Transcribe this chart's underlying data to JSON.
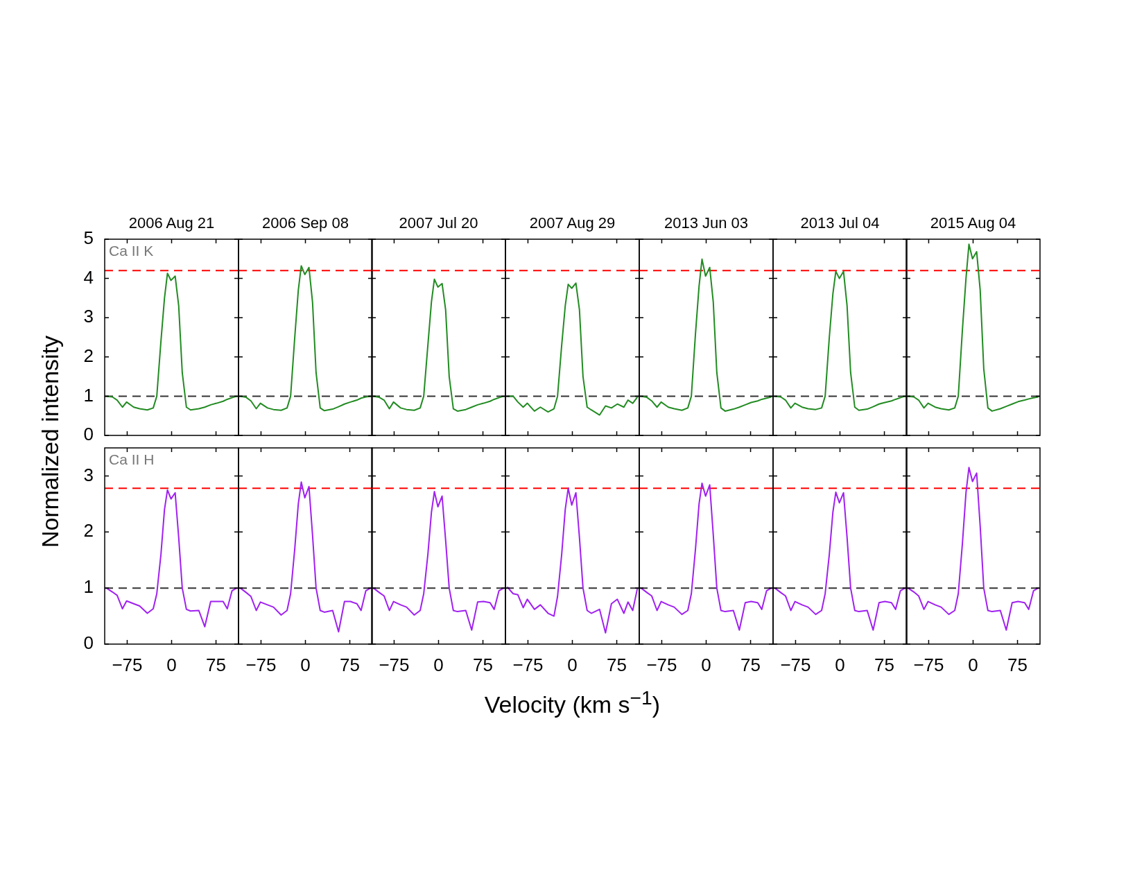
{
  "chart_data": [
    {
      "type": "line",
      "title": "2006 Aug 21",
      "ylabel": "Normalized intensity",
      "annotations": [
        "Ca II K"
      ],
      "tick_labels": "y",
      "xlim": [
        -113,
        113
      ],
      "xticks": [
        -75,
        0,
        75
      ],
      "ylim": [
        0,
        5
      ],
      "yticks": [
        0,
        1,
        2,
        3,
        4,
        5
      ],
      "ref_lines": [
        {
          "axis": "y",
          "value": 4.2,
          "color": "#ff0000",
          "line_style": "dashed"
        },
        {
          "axis": "y",
          "value": 1,
          "color": "#333333",
          "line_style": "dashed"
        }
      ],
      "x": [
        -110,
        -100,
        -92,
        -83,
        -76,
        -64,
        -54,
        -41,
        -31,
        -25,
        -18,
        -12,
        -7,
        -1,
        6,
        12,
        18,
        25,
        32,
        46,
        56,
        66,
        76,
        87,
        94,
        102,
        110
      ],
      "series": [
        {
          "color": "#228b22",
          "values": [
            1.0,
            0.98,
            0.9,
            0.72,
            0.85,
            0.72,
            0.68,
            0.65,
            0.7,
            1.0,
            2.4,
            3.5,
            4.13,
            3.95,
            4.06,
            3.3,
            1.6,
            0.72,
            0.65,
            0.68,
            0.72,
            0.78,
            0.82,
            0.87,
            0.92,
            0.96,
            1.0
          ]
        }
      ]
    },
    {
      "type": "line",
      "title": "2006 Sep 08",
      "tick_labels": false,
      "xlim": [
        -113,
        113
      ],
      "xticks": [
        -75,
        0,
        75
      ],
      "ylim": [
        0,
        5
      ],
      "yticks": [
        0,
        1,
        2,
        3,
        4,
        5
      ],
      "ref_lines": [
        {
          "axis": "y",
          "value": 4.2,
          "color": "#ff0000",
          "line_style": "dashed"
        },
        {
          "axis": "y",
          "value": 1,
          "color": "#333333",
          "line_style": "dashed"
        }
      ],
      "x": [
        -110,
        -100,
        -92,
        -83,
        -76,
        -64,
        -54,
        -41,
        -31,
        -25,
        -18,
        -12,
        -7,
        -1,
        6,
        12,
        18,
        25,
        32,
        46,
        56,
        66,
        76,
        87,
        94,
        102,
        110
      ],
      "series": [
        {
          "color": "#228b22",
          "values": [
            1.0,
            0.97,
            0.88,
            0.68,
            0.82,
            0.7,
            0.66,
            0.64,
            0.7,
            1.0,
            2.5,
            3.7,
            4.32,
            4.1,
            4.28,
            3.4,
            1.6,
            0.7,
            0.63,
            0.67,
            0.73,
            0.8,
            0.85,
            0.9,
            0.95,
            0.98,
            1.0
          ]
        }
      ]
    },
    {
      "type": "line",
      "title": "2007 Jul 20",
      "tick_labels": false,
      "xlim": [
        -113,
        113
      ],
      "xticks": [
        -75,
        0,
        75
      ],
      "ylim": [
        0,
        5
      ],
      "yticks": [
        0,
        1,
        2,
        3,
        4,
        5
      ],
      "ref_lines": [
        {
          "axis": "y",
          "value": 4.2,
          "color": "#ff0000",
          "line_style": "dashed"
        },
        {
          "axis": "y",
          "value": 1,
          "color": "#333333",
          "line_style": "dashed"
        }
      ],
      "x": [
        -110,
        -100,
        -92,
        -83,
        -76,
        -64,
        -54,
        -41,
        -31,
        -25,
        -18,
        -12,
        -7,
        -1,
        6,
        12,
        18,
        25,
        32,
        46,
        56,
        66,
        76,
        87,
        94,
        102,
        110
      ],
      "series": [
        {
          "color": "#228b22",
          "values": [
            1.0,
            0.97,
            0.9,
            0.68,
            0.85,
            0.7,
            0.66,
            0.64,
            0.7,
            1.0,
            2.3,
            3.4,
            3.98,
            3.78,
            3.87,
            3.2,
            1.5,
            0.68,
            0.62,
            0.66,
            0.72,
            0.78,
            0.82,
            0.87,
            0.92,
            0.96,
            1.0
          ]
        }
      ]
    },
    {
      "type": "line",
      "title": "2007 Aug 29",
      "tick_labels": false,
      "xlim": [
        -113,
        113
      ],
      "xticks": [
        -75,
        0,
        75
      ],
      "ylim": [
        0,
        5
      ],
      "yticks": [
        0,
        1,
        2,
        3,
        4,
        5
      ],
      "ref_lines": [
        {
          "axis": "y",
          "value": 4.2,
          "color": "#ff0000",
          "line_style": "dashed"
        },
        {
          "axis": "y",
          "value": 1,
          "color": "#333333",
          "line_style": "dashed"
        }
      ],
      "x": [
        -110,
        -100,
        -92,
        -83,
        -76,
        -64,
        -54,
        -41,
        -31,
        -25,
        -18,
        -12,
        -7,
        -1,
        6,
        12,
        18,
        25,
        32,
        46,
        56,
        66,
        76,
        87,
        94,
        102,
        110
      ],
      "series": [
        {
          "color": "#228b22",
          "values": [
            1.0,
            1.0,
            0.85,
            0.72,
            0.82,
            0.62,
            0.72,
            0.6,
            0.68,
            1.0,
            2.3,
            3.3,
            3.85,
            3.75,
            3.88,
            3.2,
            1.5,
            0.72,
            0.65,
            0.52,
            0.75,
            0.7,
            0.8,
            0.72,
            0.9,
            0.82,
            0.98
          ]
        }
      ]
    },
    {
      "type": "line",
      "title": "2013 Jun 03",
      "tick_labels": false,
      "xlim": [
        -113,
        113
      ],
      "xticks": [
        -75,
        0,
        75
      ],
      "ylim": [
        0,
        5
      ],
      "yticks": [
        0,
        1,
        2,
        3,
        4,
        5
      ],
      "ref_lines": [
        {
          "axis": "y",
          "value": 4.2,
          "color": "#ff0000",
          "line_style": "dashed"
        },
        {
          "axis": "y",
          "value": 1,
          "color": "#333333",
          "line_style": "dashed"
        }
      ],
      "x": [
        -110,
        -100,
        -92,
        -83,
        -76,
        -64,
        -54,
        -41,
        -31,
        -25,
        -18,
        -12,
        -7,
        -1,
        6,
        12,
        18,
        25,
        32,
        46,
        56,
        66,
        76,
        87,
        94,
        102,
        110
      ],
      "series": [
        {
          "color": "#228b22",
          "values": [
            1.0,
            0.97,
            0.88,
            0.72,
            0.85,
            0.72,
            0.68,
            0.64,
            0.7,
            1.0,
            2.6,
            3.8,
            4.49,
            4.06,
            4.28,
            3.4,
            1.6,
            0.7,
            0.62,
            0.67,
            0.72,
            0.78,
            0.84,
            0.88,
            0.92,
            0.95,
            0.98
          ]
        }
      ]
    },
    {
      "type": "line",
      "title": "2013 Jul 04",
      "tick_labels": false,
      "xlim": [
        -113,
        113
      ],
      "xticks": [
        -75,
        0,
        75
      ],
      "ylim": [
        0,
        5
      ],
      "yticks": [
        0,
        1,
        2,
        3,
        4,
        5
      ],
      "ref_lines": [
        {
          "axis": "y",
          "value": 4.2,
          "color": "#ff0000",
          "line_style": "dashed"
        },
        {
          "axis": "y",
          "value": 1,
          "color": "#333333",
          "line_style": "dashed"
        }
      ],
      "x": [
        -110,
        -100,
        -92,
        -83,
        -76,
        -64,
        -54,
        -41,
        -31,
        -25,
        -18,
        -12,
        -7,
        -1,
        6,
        12,
        18,
        25,
        32,
        46,
        56,
        66,
        76,
        87,
        94,
        102,
        110
      ],
      "series": [
        {
          "color": "#228b22",
          "values": [
            1.0,
            0.98,
            0.9,
            0.7,
            0.82,
            0.72,
            0.68,
            0.66,
            0.7,
            1.0,
            2.5,
            3.6,
            4.18,
            4.0,
            4.18,
            3.3,
            1.6,
            0.72,
            0.64,
            0.67,
            0.73,
            0.8,
            0.84,
            0.88,
            0.92,
            0.96,
            1.0
          ]
        }
      ]
    },
    {
      "type": "line",
      "title": "2015 Aug 04",
      "tick_labels": false,
      "xlim": [
        -113,
        113
      ],
      "xticks": [
        -75,
        0,
        75
      ],
      "ylim": [
        0,
        5
      ],
      "yticks": [
        0,
        1,
        2,
        3,
        4,
        5
      ],
      "ref_lines": [
        {
          "axis": "y",
          "value": 4.2,
          "color": "#ff0000",
          "line_style": "dashed"
        },
        {
          "axis": "y",
          "value": 1,
          "color": "#333333",
          "line_style": "dashed"
        }
      ],
      "x": [
        -110,
        -100,
        -92,
        -83,
        -76,
        -64,
        -54,
        -41,
        -31,
        -25,
        -18,
        -12,
        -7,
        -1,
        6,
        12,
        18,
        25,
        32,
        46,
        56,
        66,
        76,
        87,
        94,
        102,
        110
      ],
      "series": [
        {
          "color": "#228b22",
          "values": [
            1.0,
            0.98,
            0.9,
            0.7,
            0.82,
            0.72,
            0.68,
            0.65,
            0.7,
            1.0,
            2.7,
            4.0,
            4.87,
            4.5,
            4.68,
            3.7,
            1.7,
            0.7,
            0.62,
            0.68,
            0.74,
            0.8,
            0.86,
            0.9,
            0.93,
            0.96,
            0.98
          ]
        }
      ]
    },
    {
      "type": "line",
      "annotations": [
        "Ca II H"
      ],
      "xlim": [
        -113,
        113
      ],
      "xticks": [
        -75,
        0,
        75
      ],
      "ylim": [
        0,
        3.5
      ],
      "yticks": [
        0,
        1,
        2,
        3
      ],
      "ref_lines": [
        {
          "axis": "y",
          "value": 2.78,
          "color": "#ff0000",
          "line_style": "dashed"
        },
        {
          "axis": "y",
          "value": 1,
          "color": "#333333",
          "line_style": "dashed"
        }
      ],
      "x": [
        -110,
        -100,
        -92,
        -83,
        -76,
        -64,
        -54,
        -41,
        -31,
        -25,
        -18,
        -12,
        -7,
        -1,
        6,
        12,
        18,
        25,
        32,
        46,
        56,
        66,
        76,
        87,
        94,
        102,
        110
      ],
      "series": [
        {
          "color": "#a020f0",
          "values": [
            1.0,
            0.93,
            0.87,
            0.63,
            0.77,
            0.72,
            0.68,
            0.55,
            0.63,
            0.9,
            1.6,
            2.4,
            2.75,
            2.59,
            2.7,
            1.9,
            1.0,
            0.62,
            0.59,
            0.6,
            0.31,
            0.76,
            0.76,
            0.76,
            0.63,
            0.95,
            1.0
          ]
        }
      ]
    },
    {
      "type": "line",
      "tick_labels": "x",
      "xlim": [
        -113,
        113
      ],
      "xticks": [
        -75,
        0,
        75
      ],
      "ylim": [
        0,
        3.5
      ],
      "yticks": [
        0,
        1,
        2,
        3
      ],
      "ref_lines": [
        {
          "axis": "y",
          "value": 2.78,
          "color": "#ff0000",
          "line_style": "dashed"
        },
        {
          "axis": "y",
          "value": 1,
          "color": "#333333",
          "line_style": "dashed"
        }
      ],
      "x": [
        -110,
        -100,
        -92,
        -83,
        -76,
        -64,
        -54,
        -41,
        -31,
        -25,
        -18,
        -12,
        -7,
        -1,
        6,
        12,
        18,
        25,
        32,
        46,
        56,
        66,
        76,
        87,
        94,
        102,
        110
      ],
      "series": [
        {
          "color": "#a020f0",
          "values": [
            1.0,
            0.92,
            0.85,
            0.6,
            0.75,
            0.7,
            0.66,
            0.52,
            0.6,
            0.9,
            1.7,
            2.5,
            2.89,
            2.61,
            2.81,
            1.95,
            1.0,
            0.6,
            0.57,
            0.6,
            0.22,
            0.76,
            0.76,
            0.72,
            0.6,
            0.95,
            1.0
          ]
        }
      ]
    },
    {
      "type": "line",
      "tick_labels": "x",
      "xlim": [
        -113,
        113
      ],
      "xticks": [
        -75,
        0,
        75
      ],
      "ylim": [
        0,
        3.5
      ],
      "yticks": [
        0,
        1,
        2,
        3
      ],
      "ref_lines": [
        {
          "axis": "y",
          "value": 2.78,
          "color": "#ff0000",
          "line_style": "dashed"
        },
        {
          "axis": "y",
          "value": 1,
          "color": "#333333",
          "line_style": "dashed"
        }
      ],
      "x": [
        -110,
        -100,
        -92,
        -83,
        -76,
        -64,
        -54,
        -41,
        -31,
        -25,
        -18,
        -12,
        -7,
        -1,
        6,
        12,
        18,
        25,
        32,
        46,
        56,
        66,
        76,
        87,
        94,
        102,
        110
      ],
      "series": [
        {
          "color": "#a020f0",
          "values": [
            1.0,
            0.92,
            0.86,
            0.6,
            0.76,
            0.7,
            0.66,
            0.52,
            0.6,
            0.9,
            1.6,
            2.35,
            2.72,
            2.45,
            2.64,
            1.85,
            1.0,
            0.6,
            0.58,
            0.6,
            0.25,
            0.75,
            0.76,
            0.74,
            0.62,
            0.95,
            1.0
          ]
        }
      ]
    },
    {
      "type": "line",
      "tick_labels": "x",
      "xlabel": "Velocity (km s$^{−1}$)",
      "xlim": [
        -113,
        113
      ],
      "xticks": [
        -75,
        0,
        75
      ],
      "ylim": [
        0,
        3.5
      ],
      "yticks": [
        0,
        1,
        2,
        3
      ],
      "ref_lines": [
        {
          "axis": "y",
          "value": 2.78,
          "color": "#ff0000",
          "line_style": "dashed"
        },
        {
          "axis": "y",
          "value": 1,
          "color": "#333333",
          "line_style": "dashed"
        }
      ],
      "x": [
        -110,
        -100,
        -92,
        -83,
        -76,
        -64,
        -54,
        -41,
        -31,
        -25,
        -18,
        -12,
        -7,
        -1,
        6,
        12,
        18,
        25,
        32,
        46,
        56,
        66,
        76,
        87,
        94,
        102,
        110
      ],
      "series": [
        {
          "color": "#a020f0",
          "values": [
            1.02,
            0.9,
            0.88,
            0.65,
            0.8,
            0.62,
            0.7,
            0.55,
            0.5,
            0.85,
            1.6,
            2.4,
            2.78,
            2.48,
            2.7,
            1.9,
            1.0,
            0.6,
            0.55,
            0.62,
            0.2,
            0.72,
            0.8,
            0.55,
            0.75,
            0.6,
            1.0
          ]
        }
      ]
    },
    {
      "type": "line",
      "tick_labels": "x",
      "xlim": [
        -113,
        113
      ],
      "xticks": [
        -75,
        0,
        75
      ],
      "ylim": [
        0,
        3.5
      ],
      "yticks": [
        0,
        1,
        2,
        3
      ],
      "ref_lines": [
        {
          "axis": "y",
          "value": 2.78,
          "color": "#ff0000",
          "line_style": "dashed"
        },
        {
          "axis": "y",
          "value": 1,
          "color": "#333333",
          "line_style": "dashed"
        }
      ],
      "x": [
        -110,
        -100,
        -92,
        -83,
        -76,
        -64,
        -54,
        -41,
        -31,
        -25,
        -18,
        -12,
        -7,
        -1,
        6,
        12,
        18,
        25,
        32,
        46,
        56,
        66,
        76,
        87,
        94,
        102,
        110
      ],
      "series": [
        {
          "color": "#a020f0",
          "values": [
            1.0,
            0.92,
            0.86,
            0.6,
            0.76,
            0.7,
            0.66,
            0.53,
            0.6,
            0.9,
            1.7,
            2.5,
            2.87,
            2.64,
            2.84,
            1.95,
            1.0,
            0.6,
            0.58,
            0.6,
            0.25,
            0.74,
            0.76,
            0.74,
            0.62,
            0.95,
            1.0
          ]
        }
      ]
    },
    {
      "type": "line",
      "tick_labels": "x",
      "xlim": [
        -113,
        113
      ],
      "xticks": [
        -75,
        0,
        75
      ],
      "ylim": [
        0,
        3.5
      ],
      "yticks": [
        0,
        1,
        2,
        3
      ],
      "ref_lines": [
        {
          "axis": "y",
          "value": 2.78,
          "color": "#ff0000",
          "line_style": "dashed"
        },
        {
          "axis": "y",
          "value": 1,
          "color": "#333333",
          "line_style": "dashed"
        }
      ],
      "x": [
        -110,
        -100,
        -92,
        -83,
        -76,
        -64,
        -54,
        -41,
        -31,
        -25,
        -18,
        -12,
        -7,
        -1,
        6,
        12,
        18,
        25,
        32,
        46,
        56,
        66,
        76,
        87,
        94,
        102,
        110
      ],
      "series": [
        {
          "color": "#a020f0",
          "values": [
            1.0,
            0.92,
            0.86,
            0.6,
            0.76,
            0.7,
            0.66,
            0.53,
            0.6,
            0.9,
            1.6,
            2.35,
            2.71,
            2.52,
            2.7,
            1.9,
            1.0,
            0.6,
            0.58,
            0.6,
            0.25,
            0.74,
            0.76,
            0.74,
            0.62,
            0.95,
            1.0
          ]
        }
      ]
    },
    {
      "type": "line",
      "tick_labels": "x",
      "xlim": [
        -113,
        113
      ],
      "xticks": [
        -75,
        0,
        75
      ],
      "ylim": [
        0,
        3.5
      ],
      "yticks": [
        0,
        1,
        2,
        3
      ],
      "ref_lines": [
        {
          "axis": "y",
          "value": 2.78,
          "color": "#ff0000",
          "line_style": "dashed"
        },
        {
          "axis": "y",
          "value": 1,
          "color": "#333333",
          "line_style": "dashed"
        }
      ],
      "x": [
        -110,
        -100,
        -92,
        -83,
        -76,
        -64,
        -54,
        -41,
        -31,
        -25,
        -18,
        -12,
        -7,
        -1,
        6,
        12,
        18,
        25,
        32,
        46,
        56,
        66,
        76,
        87,
        94,
        102,
        110
      ],
      "series": [
        {
          "color": "#a020f0",
          "values": [
            1.0,
            0.93,
            0.86,
            0.62,
            0.76,
            0.7,
            0.66,
            0.53,
            0.6,
            0.9,
            1.8,
            2.7,
            3.15,
            2.9,
            3.05,
            2.1,
            1.0,
            0.6,
            0.58,
            0.6,
            0.25,
            0.74,
            0.76,
            0.74,
            0.62,
            0.95,
            1.0
          ]
        }
      ]
    }
  ]
}
